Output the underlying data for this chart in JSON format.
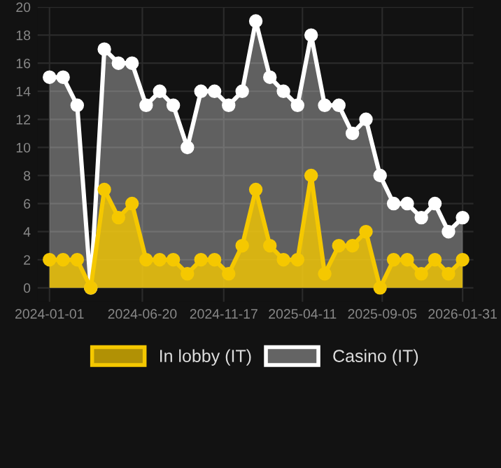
{
  "chart_data": {
    "type": "area",
    "x": [
      "2024-01-01",
      "2024-01-26",
      "2024-02-21",
      "2024-03-17",
      "2024-04-11",
      "2024-05-07",
      "2024-06-01",
      "2024-06-27",
      "2024-07-22",
      "2024-08-16",
      "2024-09-11",
      "2024-10-06",
      "2024-10-31",
      "2024-11-26",
      "2024-12-21",
      "2025-01-15",
      "2025-02-10",
      "2025-03-07",
      "2025-04-02",
      "2025-04-27",
      "2025-05-22",
      "2025-06-17",
      "2025-07-12",
      "2025-08-06",
      "2025-09-01",
      "2025-09-26",
      "2025-10-21",
      "2025-11-16",
      "2025-12-11",
      "2026-01-05",
      "2026-01-31"
    ],
    "series": [
      {
        "name": "Casino (IT)",
        "color": "#ffffff",
        "values": [
          15,
          15,
          13,
          0,
          17,
          16,
          16,
          13,
          14,
          13,
          10,
          14,
          14,
          13,
          14,
          19,
          15,
          14,
          13,
          18,
          13,
          13,
          11,
          12,
          8,
          6,
          6,
          5,
          6,
          4,
          5
        ]
      },
      {
        "name": "In lobby (IT)",
        "color": "#f5c800",
        "values": [
          2,
          2,
          2,
          0,
          7,
          5,
          6,
          2,
          2,
          2,
          1,
          2,
          2,
          1,
          3,
          7,
          3,
          2,
          2,
          8,
          1,
          3,
          3,
          4,
          0,
          2,
          2,
          1,
          2,
          1,
          2
        ]
      }
    ],
    "xlim": [
      "2023-12-10",
      "2026-02-20"
    ],
    "xticks": [
      "2024-01-01",
      "2024-06-20",
      "2024-11-17",
      "2025-04-11",
      "2025-09-05",
      "2026-01-31"
    ],
    "ylim": [
      -1,
      20
    ],
    "yticks": [
      0,
      2,
      4,
      6,
      8,
      10,
      12,
      14,
      16,
      18,
      20
    ],
    "grid": true,
    "legend": "bottom",
    "marker": "circle",
    "line_style": "solid"
  }
}
